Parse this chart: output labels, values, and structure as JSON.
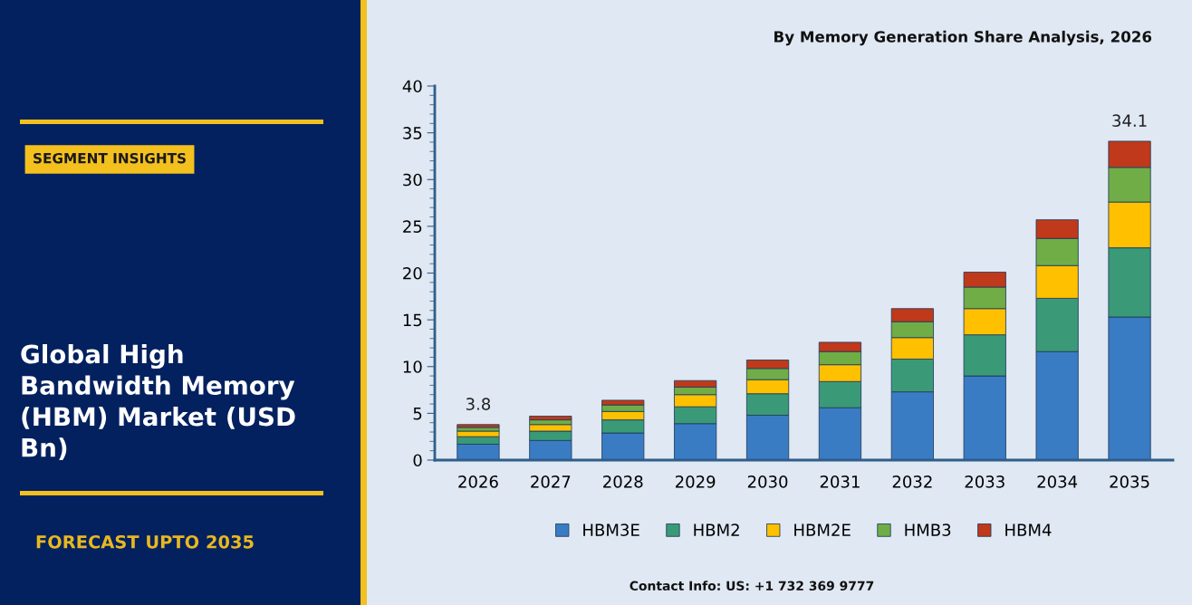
{
  "chart_data": {
    "type": "bar",
    "stacked": true,
    "title": "Global High Bandwidth Memory (HBM) Market (USD Bn)",
    "subtitle": "By Memory Generation Share Analysis, 2026",
    "annotations": [
      "SEGMENT INSIGHTS",
      "FORECAST UPTO 2035",
      "Contact Info: US: +1 732 369 9777"
    ],
    "categories": [
      "2026",
      "2027",
      "2028",
      "2029",
      "2030",
      "2031",
      "2032",
      "2033",
      "2034",
      "2035"
    ],
    "series": [
      {
        "name": "HBM3E",
        "color": "#3a7cc4",
        "values": [
          1.7,
          2.1,
          2.9,
          3.9,
          4.8,
          5.6,
          7.3,
          9.0,
          11.6,
          15.3
        ]
      },
      {
        "name": "HBM2",
        "color": "#3a9a78",
        "values": [
          0.8,
          1.0,
          1.4,
          1.8,
          2.3,
          2.8,
          3.5,
          4.4,
          5.7,
          7.4
        ]
      },
      {
        "name": "HBM2E",
        "color": "#ffc000",
        "values": [
          0.6,
          0.7,
          0.9,
          1.3,
          1.5,
          1.8,
          2.3,
          2.8,
          3.5,
          4.9
        ]
      },
      {
        "name": "HMB3",
        "color": "#70ad47",
        "values": [
          0.4,
          0.5,
          0.7,
          0.8,
          1.2,
          1.4,
          1.7,
          2.3,
          2.9,
          3.7
        ]
      },
      {
        "name": "HBM4",
        "color": "#c0391b",
        "values": [
          0.3,
          0.4,
          0.5,
          0.7,
          0.9,
          1.0,
          1.4,
          1.6,
          2.0,
          2.8
        ]
      }
    ],
    "totals": [
      "3.8",
      null,
      null,
      null,
      null,
      null,
      null,
      null,
      null,
      "34.1"
    ],
    "ylim": [
      0,
      40
    ],
    "yticks": [
      0,
      5,
      10,
      15,
      20,
      25,
      30,
      35,
      40
    ],
    "grid": false,
    "legend": "bottom"
  }
}
